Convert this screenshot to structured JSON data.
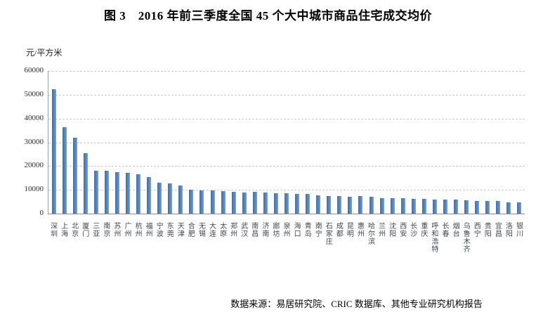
{
  "page": {
    "title": "图 3　2016 年前三季度全国 45 个大中城市商品住宅成交均价",
    "source_note": "数据来源：易居研究院、CRIC 数据库、其他专业研究机构报告"
  },
  "chart_data": {
    "type": "bar",
    "title": "2016 年前三季度全国 45 个大中城市商品住宅成交均价",
    "xlabel": "",
    "ylabel": "元/平方米",
    "ylim": [
      0,
      60000
    ],
    "yticks": [
      0,
      10000,
      20000,
      30000,
      40000,
      50000,
      60000
    ],
    "grid": "horizontal-dashed",
    "legend_position": "none",
    "bar_color": "#4f81bd",
    "categories": [
      "深圳",
      "上海",
      "北京",
      "厦门",
      "三亚",
      "南京",
      "苏州",
      "广州",
      "杭州",
      "福州",
      "宁波",
      "东莞",
      "天津",
      "合肥",
      "无锡",
      "大连",
      "太原",
      "郑州",
      "武汉",
      "南昌",
      "济南",
      "廊坊",
      "泉州",
      "海口",
      "青岛",
      "南宁",
      "石家庄",
      "成都",
      "昆明",
      "惠州",
      "哈尔滨",
      "兰州",
      "沈阳",
      "西安",
      "长沙",
      "重庆",
      "呼和浩特",
      "长春",
      "烟台",
      "乌鲁木齐",
      "西宁",
      "贵阳",
      "宜昌",
      "洛阳",
      "银川"
    ],
    "values": [
      52200,
      36400,
      31800,
      25500,
      18100,
      18000,
      17500,
      17100,
      16700,
      15400,
      13100,
      12600,
      11900,
      10000,
      9800,
      9700,
      9500,
      9200,
      9000,
      9100,
      8800,
      8600,
      8500,
      8300,
      8200,
      7700,
      7300,
      7400,
      7200,
      7300,
      7000,
      6600,
      6500,
      6400,
      6300,
      6200,
      6000,
      6000,
      5900,
      5700,
      5400,
      5400,
      5200,
      4800,
      4700
    ]
  }
}
